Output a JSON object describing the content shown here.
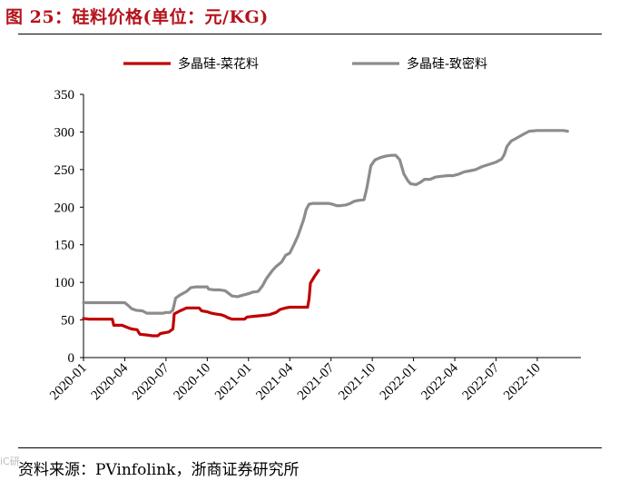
{
  "figure": {
    "title": "图 25：硅料价格(单位：元/KG)",
    "source": "资料来源：PVinfolink，浙商证券研究所",
    "watermark": "iC研"
  },
  "chart_data": {
    "type": "line",
    "title": "",
    "xlabel": "",
    "ylabel": "",
    "ylim": [
      0,
      350
    ],
    "yticks": [
      0,
      50,
      100,
      150,
      200,
      250,
      300,
      350
    ],
    "xlim": [
      0,
      34
    ],
    "xticks": [
      {
        "pos": 0,
        "label": "2020-01"
      },
      {
        "pos": 3,
        "label": "2020-04"
      },
      {
        "pos": 6,
        "label": "2020-07"
      },
      {
        "pos": 9,
        "label": "2020-10"
      },
      {
        "pos": 12,
        "label": "2021-01"
      },
      {
        "pos": 15,
        "label": "2021-04"
      },
      {
        "pos": 18,
        "label": "2021-07"
      },
      {
        "pos": 21,
        "label": "2021-10"
      },
      {
        "pos": 24,
        "label": "2022-01"
      },
      {
        "pos": 27,
        "label": "2022-04"
      },
      {
        "pos": 30,
        "label": "2022-07"
      },
      {
        "pos": 33,
        "label": "2022-10"
      }
    ],
    "grid": false,
    "legend_position": "top",
    "series": [
      {
        "name": "多晶硅-菜花料",
        "color": "#c00000",
        "points": [
          [
            0.0,
            52
          ],
          [
            0.4,
            51
          ],
          [
            1.0,
            51
          ],
          [
            1.6,
            51
          ],
          [
            2.1,
            51
          ],
          [
            2.2,
            43
          ],
          [
            2.8,
            43
          ],
          [
            3.2,
            40
          ],
          [
            3.5,
            38
          ],
          [
            3.9,
            37
          ],
          [
            4.1,
            31
          ],
          [
            4.6,
            30
          ],
          [
            5.0,
            29
          ],
          [
            5.4,
            29
          ],
          [
            5.6,
            32
          ],
          [
            6.2,
            34
          ],
          [
            6.5,
            38
          ],
          [
            6.6,
            58
          ],
          [
            7.0,
            62
          ],
          [
            7.5,
            66
          ],
          [
            8.1,
            66
          ],
          [
            8.4,
            66
          ],
          [
            8.6,
            62
          ],
          [
            9.0,
            61
          ],
          [
            9.3,
            59
          ],
          [
            9.6,
            58
          ],
          [
            10.0,
            57
          ],
          [
            10.3,
            55
          ],
          [
            10.5,
            53
          ],
          [
            10.8,
            51
          ],
          [
            11.4,
            51
          ],
          [
            11.7,
            51
          ],
          [
            11.9,
            54
          ],
          [
            12.5,
            55
          ],
          [
            13.0,
            56
          ],
          [
            13.5,
            57
          ],
          [
            14.0,
            60
          ],
          [
            14.3,
            64
          ],
          [
            14.7,
            66
          ],
          [
            15.0,
            67
          ],
          [
            15.5,
            67
          ],
          [
            16.0,
            67
          ],
          [
            16.3,
            67
          ],
          [
            16.4,
            78
          ],
          [
            16.5,
            99
          ],
          [
            16.8,
            108
          ],
          [
            17.1,
            116
          ]
        ]
      },
      {
        "name": "多晶硅-致密料",
        "color": "#8c8c8c",
        "points": [
          [
            0.0,
            73
          ],
          [
            0.5,
            73
          ],
          [
            1.5,
            73
          ],
          [
            2.5,
            73
          ],
          [
            3.0,
            73
          ],
          [
            3.2,
            70
          ],
          [
            3.5,
            65
          ],
          [
            3.8,
            63
          ],
          [
            4.3,
            62
          ],
          [
            4.6,
            59
          ],
          [
            5.0,
            59
          ],
          [
            5.5,
            59
          ],
          [
            5.8,
            59
          ],
          [
            6.0,
            60
          ],
          [
            6.3,
            60
          ],
          [
            6.5,
            63
          ],
          [
            6.7,
            79
          ],
          [
            7.0,
            83
          ],
          [
            7.5,
            88
          ],
          [
            7.8,
            93
          ],
          [
            8.2,
            94
          ],
          [
            8.6,
            94
          ],
          [
            9.0,
            94
          ],
          [
            9.1,
            91
          ],
          [
            9.5,
            90
          ],
          [
            9.9,
            90
          ],
          [
            10.3,
            89
          ],
          [
            10.5,
            86
          ],
          [
            10.8,
            82
          ],
          [
            11.2,
            81
          ],
          [
            11.6,
            83
          ],
          [
            12.0,
            85
          ],
          [
            12.3,
            87
          ],
          [
            12.7,
            88
          ],
          [
            13.0,
            95
          ],
          [
            13.3,
            105
          ],
          [
            13.7,
            115
          ],
          [
            14.0,
            121
          ],
          [
            14.4,
            127
          ],
          [
            14.7,
            136
          ],
          [
            15.0,
            139
          ],
          [
            15.3,
            150
          ],
          [
            15.6,
            162
          ],
          [
            16.0,
            183
          ],
          [
            16.2,
            197
          ],
          [
            16.4,
            204
          ],
          [
            16.7,
            205
          ],
          [
            17.3,
            205
          ],
          [
            17.8,
            205
          ],
          [
            18.1,
            204
          ],
          [
            18.4,
            202
          ],
          [
            18.7,
            202
          ],
          [
            19.1,
            203
          ],
          [
            19.4,
            205
          ],
          [
            19.7,
            208
          ],
          [
            20.0,
            209
          ],
          [
            20.4,
            210
          ],
          [
            20.6,
            225
          ],
          [
            20.9,
            255
          ],
          [
            21.2,
            263
          ],
          [
            21.6,
            266
          ],
          [
            22.0,
            268
          ],
          [
            22.4,
            269
          ],
          [
            22.7,
            269
          ],
          [
            23.0,
            263
          ],
          [
            23.3,
            244
          ],
          [
            23.6,
            235
          ],
          [
            23.8,
            231
          ],
          [
            24.2,
            230
          ],
          [
            24.5,
            233
          ],
          [
            24.8,
            237
          ],
          [
            25.2,
            237
          ],
          [
            25.6,
            240
          ],
          [
            26.0,
            241
          ],
          [
            26.5,
            242
          ],
          [
            26.9,
            242
          ],
          [
            27.3,
            244
          ],
          [
            27.7,
            247
          ],
          [
            28.0,
            248
          ],
          [
            28.5,
            250
          ],
          [
            29.0,
            254
          ],
          [
            29.5,
            257
          ],
          [
            30.0,
            260
          ],
          [
            30.4,
            264
          ],
          [
            30.6,
            270
          ],
          [
            30.8,
            281
          ],
          [
            31.1,
            288
          ],
          [
            31.5,
            292
          ],
          [
            32.0,
            297
          ],
          [
            32.4,
            301
          ],
          [
            33.0,
            302
          ],
          [
            33.5,
            302
          ],
          [
            34.0,
            302
          ],
          [
            34.5,
            302
          ],
          [
            34.9,
            302
          ],
          [
            35.2,
            301
          ]
        ]
      }
    ]
  }
}
